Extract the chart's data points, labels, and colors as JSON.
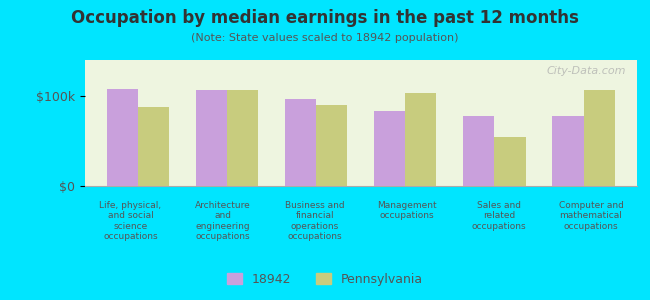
{
  "title": "Occupation by median earnings in the past 12 months",
  "subtitle": "(Note: State values scaled to 18942 population)",
  "categories": [
    "Life, physical,\nand social\nscience\noccupations",
    "Architecture\nand\nengineering\noccupations",
    "Business and\nfinancial\noperations\noccupations",
    "Management\noccupations",
    "Sales and\nrelated\noccupations",
    "Computer and\nmathematical\noccupations"
  ],
  "values_18942": [
    108000,
    107000,
    97000,
    83000,
    78000,
    78000
  ],
  "values_pa": [
    88000,
    107000,
    90000,
    103000,
    55000,
    107000
  ],
  "color_18942": "#c9a0dc",
  "color_pa": "#c8cc7e",
  "yticks": [
    0,
    100000
  ],
  "ytick_labels": [
    "$0",
    "$100k"
  ],
  "ylim": [
    0,
    140000
  ],
  "background_color": "#e8f5e0",
  "outer_background": "#00e5ff",
  "bar_width": 0.35,
  "legend_18942": "18942",
  "legend_pa": "Pennsylvania",
  "watermark": "City-Data.com"
}
